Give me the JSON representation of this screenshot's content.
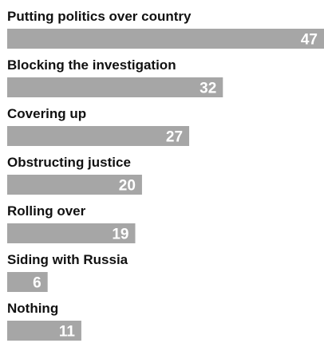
{
  "chart_data": {
    "type": "bar",
    "orientation": "horizontal",
    "categories": [
      "Putting politics over country",
      "Blocking the investigation",
      "Covering up",
      "Obstructing justice",
      "Rolling over",
      "Siding with Russia",
      "Nothing"
    ],
    "values": [
      47,
      32,
      27,
      20,
      19,
      6,
      11
    ],
    "data_labels": [
      "47",
      "32",
      "27",
      "20",
      "19",
      "6",
      "11"
    ],
    "xlim": [
      0,
      47
    ],
    "grid": false,
    "legend": "none",
    "title": "",
    "xlabel": "",
    "ylabel": "",
    "colors": {
      "bar": "#a6a6a6",
      "label": "#111111",
      "value_label": "#ffffff",
      "background": "#ffffff"
    }
  }
}
